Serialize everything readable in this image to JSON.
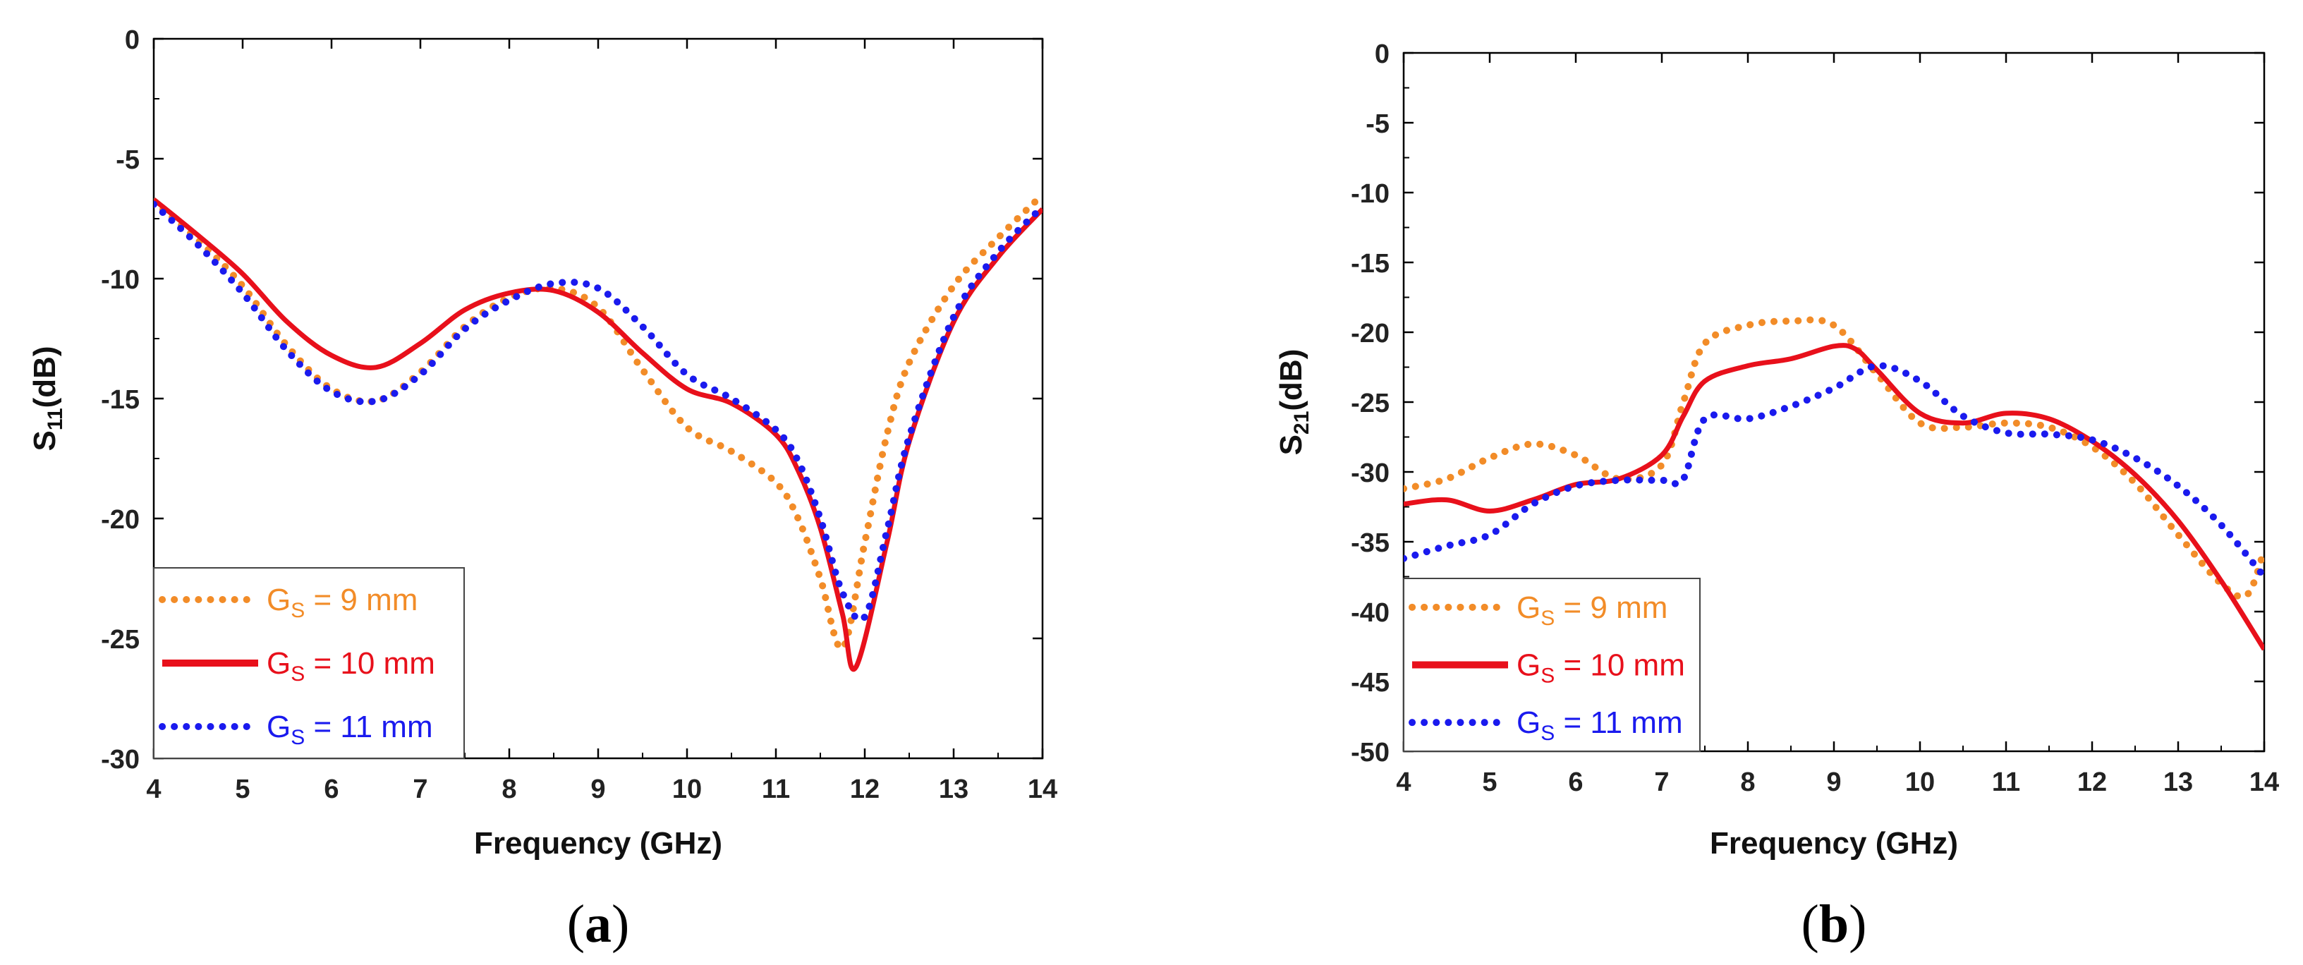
{
  "chart_data": [
    {
      "type": "line",
      "panel": "a",
      "caption": [
        "(",
        "a",
        ")"
      ],
      "xlabel": "Frequency (GHz)",
      "ylabel": {
        "main": "S",
        "sub": "11",
        "unit": "(dB)"
      },
      "xlim": [
        4,
        14
      ],
      "ylim": [
        -30,
        0
      ],
      "xticks": [
        "4",
        "5",
        "6",
        "7",
        "8",
        "9",
        "10",
        "11",
        "12",
        "13",
        "14"
      ],
      "yticks": [
        "0",
        "-5",
        "-10",
        "-15",
        "-20",
        "-25",
        "-30"
      ],
      "grid": false,
      "legend_position": "bottom-left",
      "series": [
        {
          "name": "G_S = 9 mm",
          "legend": {
            "main": "G",
            "sub": "S",
            "rest": " = 9 mm"
          },
          "color": "#f28c28",
          "style": "dotted",
          "x": [
            4,
            4.5,
            5,
            5.5,
            6,
            6.5,
            7,
            7.5,
            8,
            8.5,
            9,
            9.5,
            10,
            10.5,
            11,
            11.25,
            11.5,
            11.75,
            12,
            12.25,
            12.5,
            13,
            13.5,
            14
          ],
          "y": [
            -6.8,
            -8.4,
            -10.3,
            -12.8,
            -14.6,
            -15.1,
            -13.9,
            -12,
            -10.8,
            -10.4,
            -11.2,
            -13.8,
            -16.2,
            -17.2,
            -18.5,
            -20,
            -22.5,
            -25.4,
            -21,
            -16.5,
            -13.5,
            -10.3,
            -8.3,
            -6.5
          ]
        },
        {
          "name": "G_S = 10 mm",
          "legend": {
            "main": "G",
            "sub": "S",
            "rest": " = 10 mm"
          },
          "color": "#e8101b",
          "style": "solid",
          "x": [
            4,
            4.5,
            5,
            5.5,
            6,
            6.5,
            7,
            7.5,
            8,
            8.5,
            9,
            9.5,
            10,
            10.5,
            11,
            11.25,
            11.5,
            11.75,
            11.9,
            12.25,
            12.5,
            13,
            13.5,
            14
          ],
          "y": [
            -6.7,
            -8.2,
            -9.8,
            -11.8,
            -13.2,
            -13.7,
            -12.7,
            -11.3,
            -10.6,
            -10.5,
            -11.4,
            -13.1,
            -14.6,
            -15.2,
            -16.5,
            -18,
            -20.4,
            -24,
            -26.2,
            -21,
            -16.8,
            -11.8,
            -9.1,
            -7.1
          ]
        },
        {
          "name": "G_S = 11 mm",
          "legend": {
            "main": "G",
            "sub": "S",
            "rest": " = 11 mm"
          },
          "color": "#1a1aee",
          "style": "dotted",
          "x": [
            4,
            4.5,
            5,
            5.5,
            6,
            6.5,
            7,
            7.5,
            8,
            8.5,
            9,
            9.5,
            10,
            10.5,
            11,
            11.25,
            11.5,
            11.75,
            12,
            12.25,
            12.5,
            13,
            13.5,
            14
          ],
          "y": [
            -6.9,
            -8.6,
            -10.6,
            -13,
            -14.7,
            -15.1,
            -14,
            -12.1,
            -10.9,
            -10.2,
            -10.4,
            -12,
            -14,
            -15,
            -16.3,
            -17.6,
            -20,
            -23.1,
            -24.1,
            -20.5,
            -16.6,
            -11.6,
            -8.9,
            -7
          ]
        }
      ]
    },
    {
      "type": "line",
      "panel": "b",
      "caption": [
        "(",
        "b",
        ")"
      ],
      "xlabel": "Frequency (GHz)",
      "ylabel": {
        "main": "S",
        "sub": "21",
        "unit": "(dB)"
      },
      "xlim": [
        4,
        14
      ],
      "ylim": [
        -50,
        0
      ],
      "xticks": [
        "4",
        "5",
        "6",
        "7",
        "8",
        "9",
        "10",
        "11",
        "12",
        "13",
        "14"
      ],
      "yticks": [
        "0",
        "-5",
        "-10",
        "-15",
        "-20",
        "-25",
        "-30",
        "-35",
        "-40",
        "-45",
        "-50"
      ],
      "grid": false,
      "legend_position": "bottom-left",
      "series": [
        {
          "name": "G_S = 9 mm",
          "legend": {
            "main": "G",
            "sub": "S",
            "rest": " = 9 mm"
          },
          "color": "#f28c28",
          "style": "dotted",
          "x": [
            4,
            4.5,
            5,
            5.5,
            6,
            6.5,
            7,
            7.25,
            7.5,
            8,
            8.5,
            9,
            9.5,
            10,
            10.5,
            11,
            11.5,
            12,
            12.5,
            13,
            13.5,
            13.8,
            14
          ],
          "y": [
            -31.2,
            -30.5,
            -29,
            -28,
            -28.8,
            -30.5,
            -29.5,
            -25,
            -20.8,
            -19.5,
            -19.2,
            -19.5,
            -23,
            -26.5,
            -26.8,
            -26.5,
            -26.8,
            -28.2,
            -30.8,
            -34.5,
            -38,
            -38.8,
            -35.6
          ]
        },
        {
          "name": "G_S = 10 mm",
          "legend": {
            "main": "G",
            "sub": "S",
            "rest": " = 10 mm"
          },
          "color": "#e8101b",
          "style": "solid",
          "x": [
            4,
            4.5,
            5,
            5.5,
            6,
            6.5,
            7,
            7.25,
            7.5,
            8,
            8.5,
            9,
            9.25,
            9.5,
            10,
            10.5,
            11,
            11.5,
            12,
            12.5,
            13,
            13.5,
            14
          ],
          "y": [
            -32.3,
            -32,
            -32.8,
            -32,
            -30.9,
            -30.5,
            -28.8,
            -26,
            -23.5,
            -22.4,
            -21.9,
            -21,
            -21.2,
            -22.7,
            -25.8,
            -26.5,
            -25.8,
            -26.2,
            -27.8,
            -30.2,
            -33.5,
            -37.8,
            -42.7
          ]
        },
        {
          "name": "G_S = 11 mm",
          "legend": {
            "main": "G",
            "sub": "S",
            "rest": " = 11 mm"
          },
          "color": "#1a1aee",
          "style": "dotted",
          "x": [
            4,
            4.5,
            5,
            5.5,
            6,
            6.5,
            7,
            7.25,
            7.5,
            8,
            8.5,
            9,
            9.5,
            10,
            10.5,
            11,
            11.5,
            12,
            12.5,
            13,
            13.5,
            14
          ],
          "y": [
            -36.2,
            -35.3,
            -34.5,
            -32.3,
            -31,
            -30.6,
            -30.6,
            -30.5,
            -26.2,
            -26.2,
            -25.3,
            -24,
            -22.4,
            -23.5,
            -26,
            -27.2,
            -27.3,
            -27.7,
            -29,
            -31,
            -33.8,
            -37.5
          ]
        }
      ]
    }
  ]
}
